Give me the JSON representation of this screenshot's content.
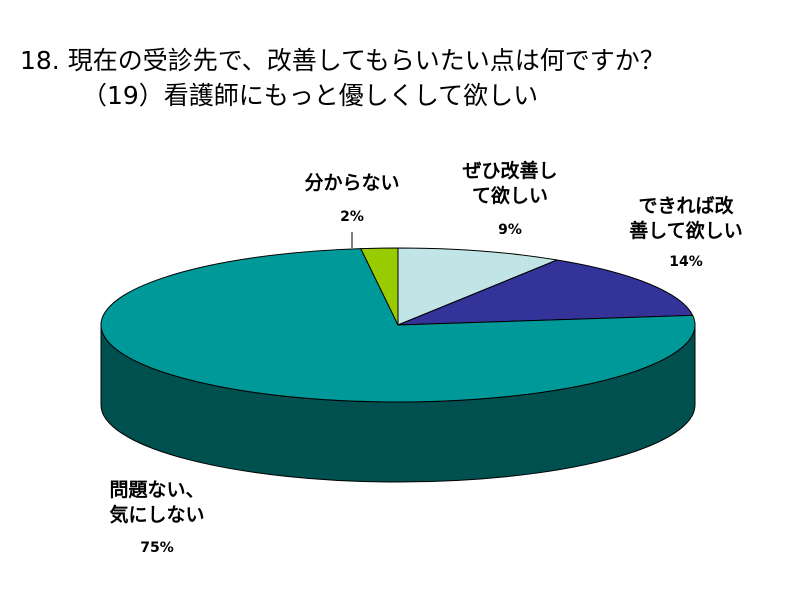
{
  "title": {
    "line1": "18. 現在の受診先で、改善してもらいたい点は何ですか？",
    "line2": "（19）看護師にもっと優しくして欲しい"
  },
  "chart_data": {
    "type": "pie",
    "three_d": true,
    "categories": [
      "ぜひ改善して欲しい",
      "できれば改善して欲しい",
      "問題ない、気にしない",
      "分からない"
    ],
    "values": [
      9,
      14,
      75,
      2
    ],
    "percent_labels": [
      "9%",
      "14%",
      "75%",
      "2%"
    ],
    "colors": [
      "#c1e4e6",
      "#333399",
      "#009999",
      "#99cc00"
    ],
    "side_colors": [
      "#6f9a9b",
      "#1d1d63",
      "#005050",
      "#5a7a00"
    ],
    "label_lines": [
      [
        "ぜひ改善し",
        "て欲しい"
      ],
      [
        "できれば改",
        "善して欲しい"
      ],
      [
        "問題ない、",
        "気にしない"
      ],
      [
        "分からない"
      ]
    ]
  }
}
